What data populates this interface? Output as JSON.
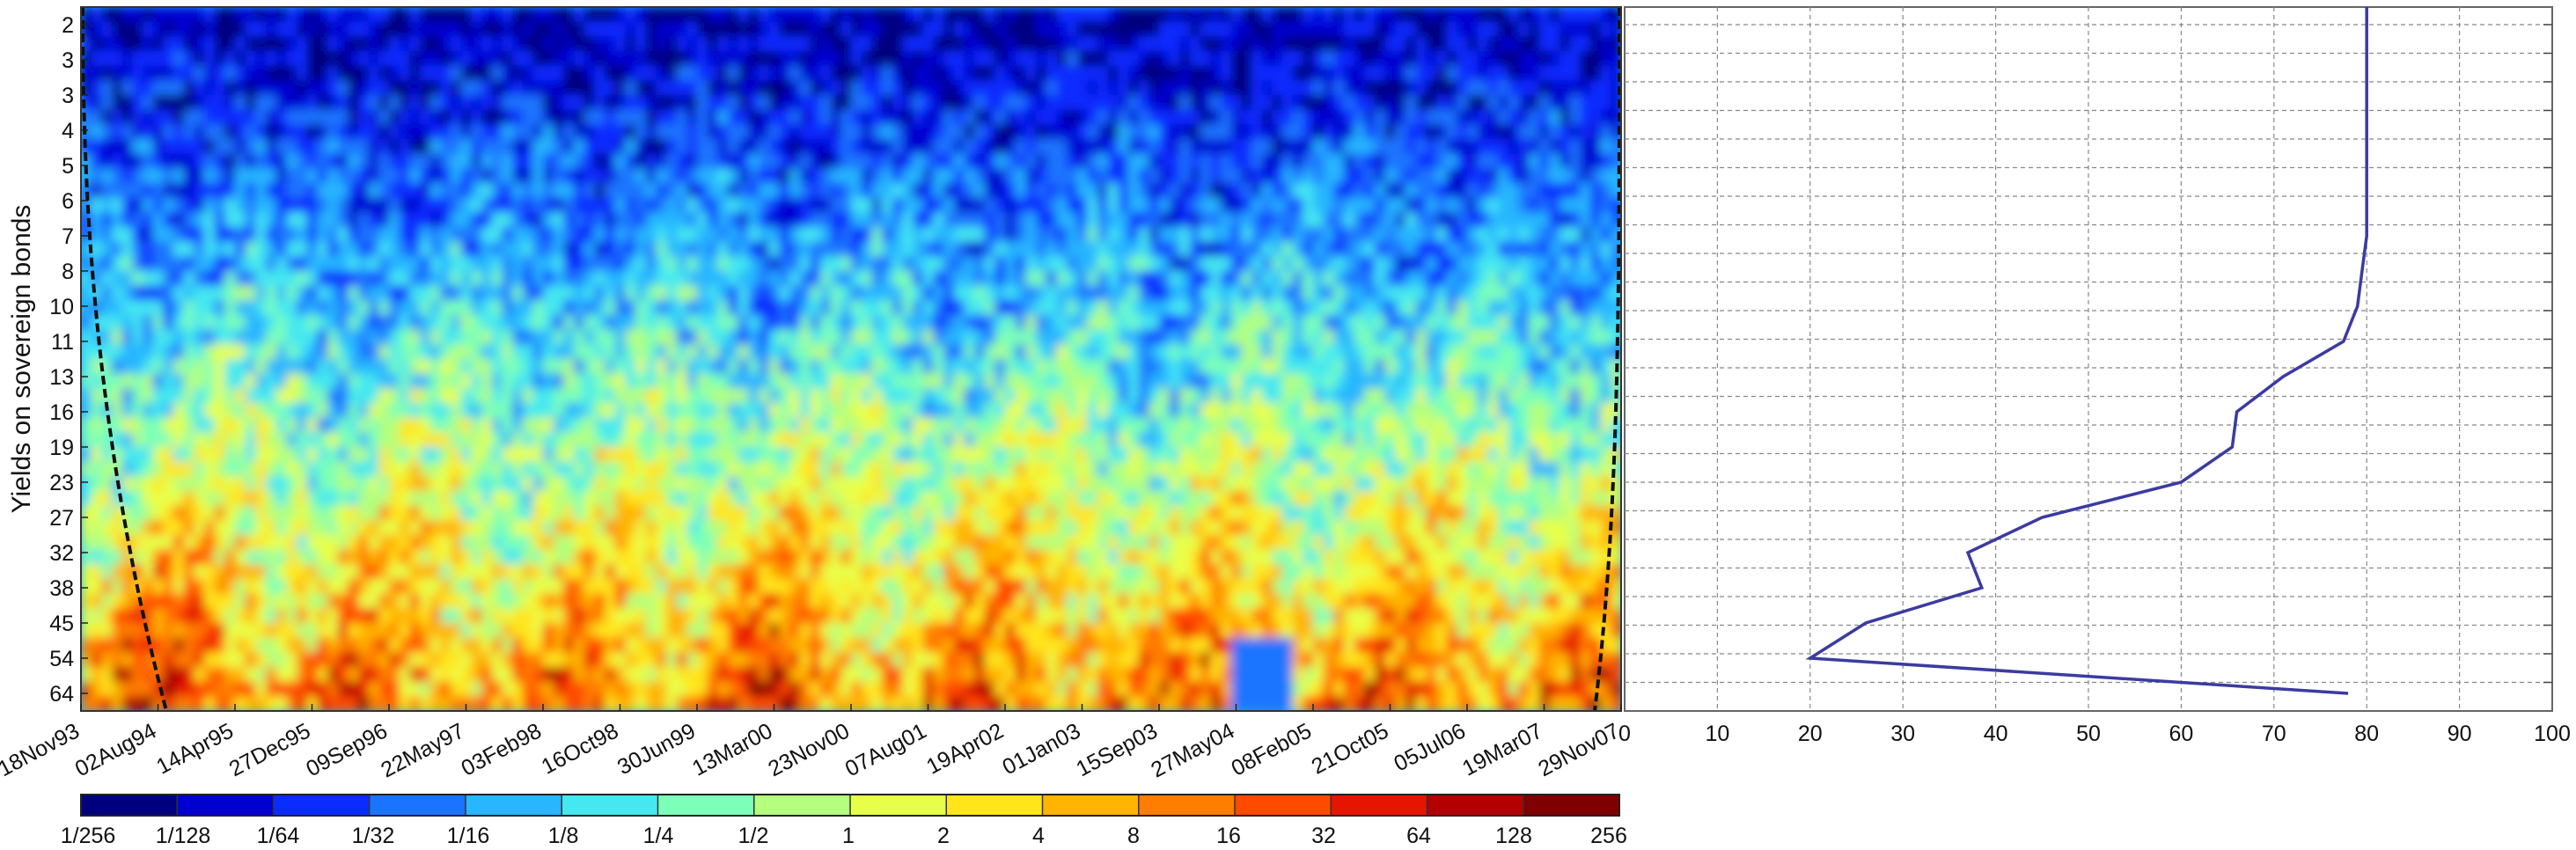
{
  "chart_data": [
    {
      "type": "heatmap",
      "ylabel": "Yields on sovereign bonds",
      "xlabel": "",
      "x_tick_labels": [
        "18Nov93",
        "02Aug94",
        "14Apr95",
        "27Dec95",
        "09Sep96",
        "22May97",
        "03Feb98",
        "16Oct98",
        "30Jun99",
        "13Mar00",
        "23Nov00",
        "07Aug01",
        "19Apr02",
        "01Jan03",
        "15Sep03",
        "27May04",
        "08Feb05",
        "21Oct05",
        "05Jul06",
        "19Mar07",
        "29Nov07"
      ],
      "y_tick_labels": [
        "2",
        "3",
        "3",
        "4",
        "5",
        "6",
        "7",
        "8",
        "10",
        "11",
        "13",
        "16",
        "19",
        "23",
        "27",
        "32",
        "38",
        "45",
        "54",
        "64"
      ],
      "colorbar": {
        "labels": [
          "1/256",
          "1/128",
          "1/64",
          "1/32",
          "1/16",
          "1/8",
          "1/4",
          "1/2",
          "1",
          "2",
          "4",
          "8",
          "16",
          "32",
          "64",
          "128",
          "256"
        ],
        "colormap": "jet",
        "colors": [
          "#00007f",
          "#0000d0",
          "#0a2cff",
          "#1a74ff",
          "#27b6ff",
          "#45e8f0",
          "#7cffb8",
          "#b4ff7e",
          "#e8ff4a",
          "#ffe51a",
          "#ffb400",
          "#ff7d00",
          "#ff4a00",
          "#e61400",
          "#b40000",
          "#7f0000"
        ]
      },
      "pattern": {
        "low_power_color_at_short_periods": "#000090",
        "high_power_color_at_long_periods": "#d62200",
        "cone_of_influence": true
      }
    },
    {
      "type": "line",
      "xlim": [
        0,
        100
      ],
      "x_tick_labels": [
        "0",
        "10",
        "20",
        "30",
        "40",
        "50",
        "60",
        "70",
        "80",
        "90",
        "100"
      ],
      "grid": true,
      "line_color": "#3b3ba0",
      "series": [
        {
          "y_period_index": [
            0,
            1,
            2,
            3,
            4,
            5,
            6,
            7,
            8,
            9,
            10,
            11,
            12,
            13,
            14,
            15,
            16,
            17,
            18,
            19
          ],
          "values": [
            80,
            80,
            80,
            80,
            80,
            80,
            80,
            79.5,
            79,
            77.5,
            71,
            66,
            65.5,
            60,
            45,
            37,
            38.5,
            26,
            20,
            78
          ]
        }
      ]
    }
  ]
}
